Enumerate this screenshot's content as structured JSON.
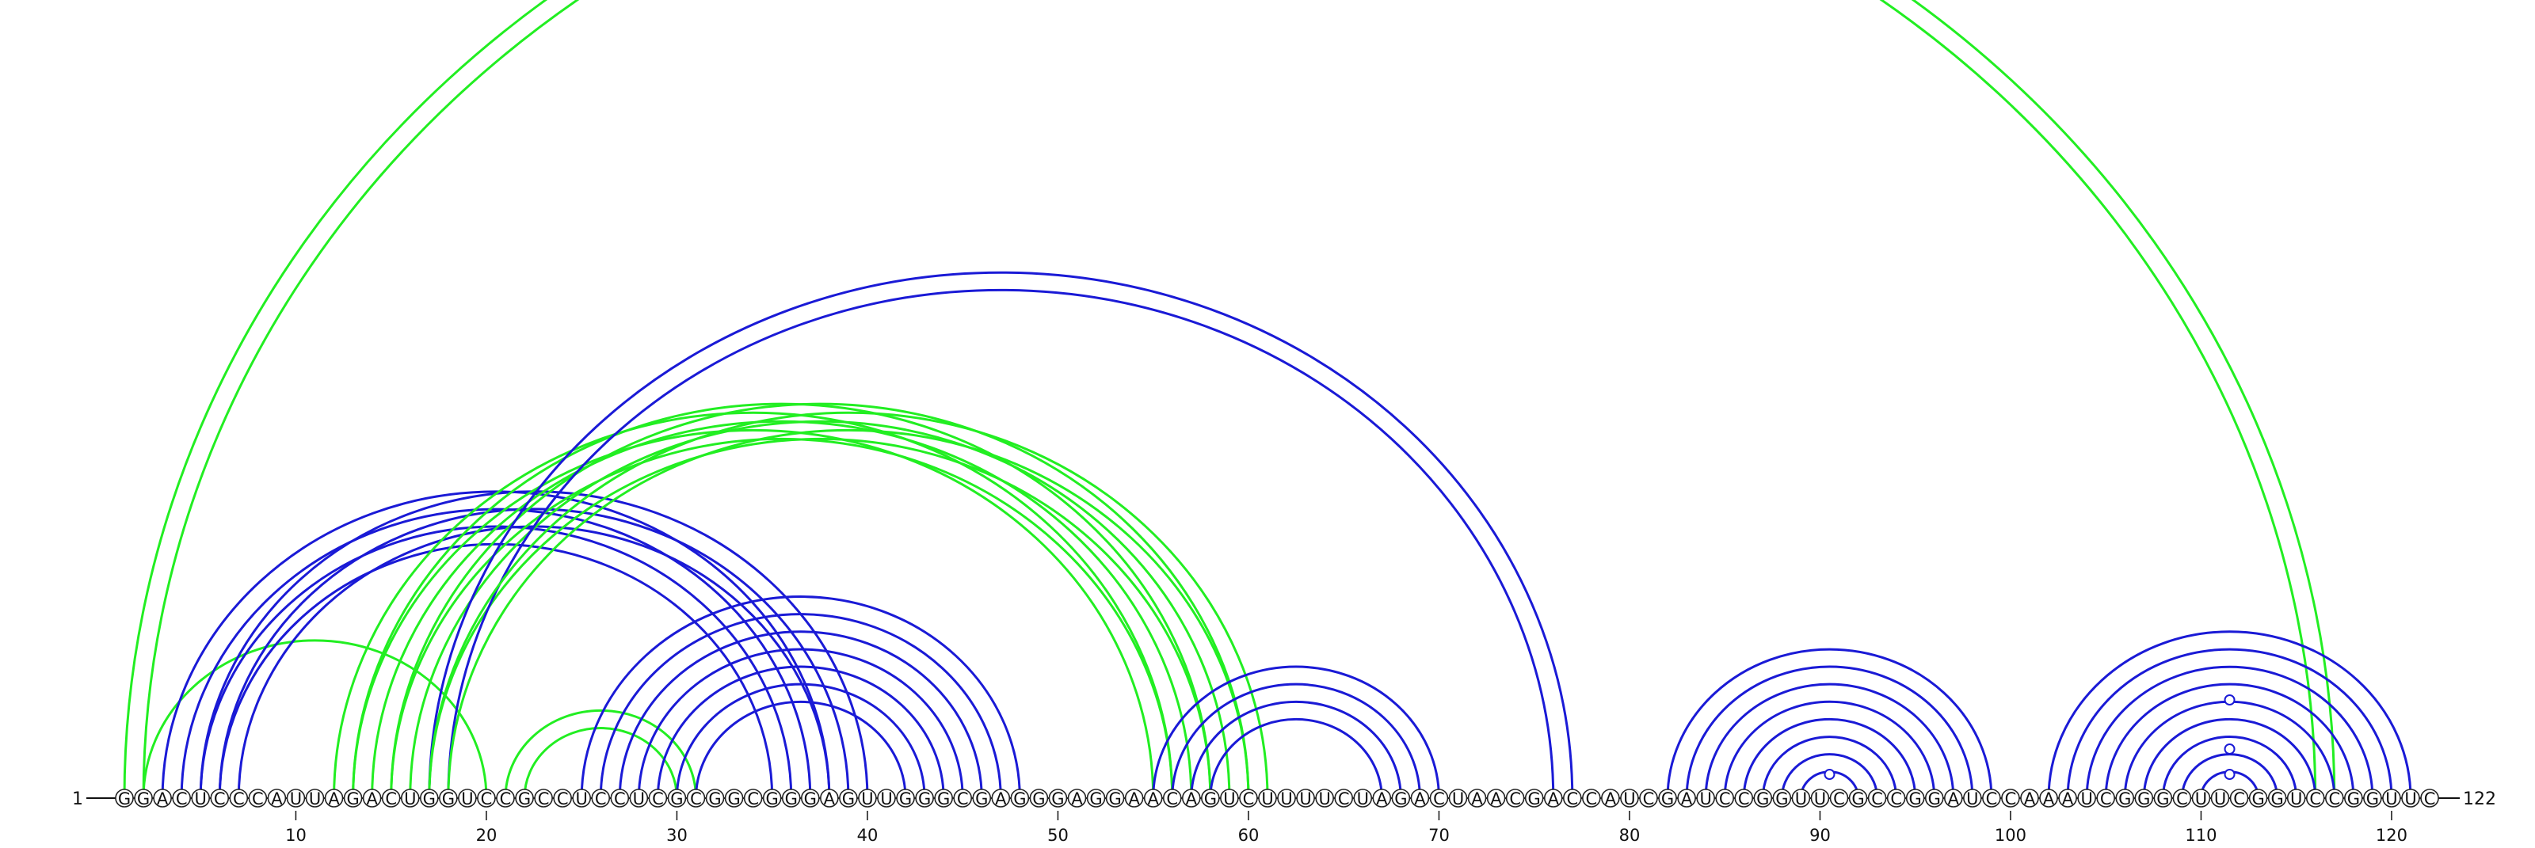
{
  "sequence": "GGACUCCCAUUAGACUGGUCCGCCUCCUCGCGGCGGGAGUUGGGCGAGGGAGGAACAGUCUUUUCUAGACUAACGACCAUCGAUCCGGUUCGCCGGAUCCAAAUCGGGCUUCGGUCCGGUUC",
  "length": 122,
  "start_label": "1",
  "end_label": "122",
  "tick_labels": [
    "10",
    "20",
    "30",
    "40",
    "50",
    "60",
    "70",
    "80",
    "90",
    "100",
    "110",
    "120"
  ],
  "colors": {
    "blue": "#1a1ad6",
    "green": "#22ee22",
    "dot": "#1a1ad6"
  },
  "helices": [
    {
      "color": "green",
      "pairs": [
        [
          1,
          117
        ],
        [
          2,
          116
        ]
      ]
    },
    {
      "color": "green",
      "pairs": [
        [
          2,
          20
        ]
      ]
    },
    {
      "color": "blue",
      "pairs": [
        [
          3,
          38
        ],
        [
          4,
          37
        ],
        [
          5,
          36
        ],
        [
          6,
          35
        ]
      ]
    },
    {
      "color": "blue",
      "pairs": [
        [
          5,
          40
        ],
        [
          6,
          39
        ],
        [
          7,
          38
        ]
      ]
    },
    {
      "color": "green",
      "pairs": [
        [
          12,
          56
        ],
        [
          13,
          55
        ]
      ]
    },
    {
      "color": "green",
      "pairs": [
        [
          13,
          58
        ],
        [
          14,
          57
        ],
        [
          15,
          56
        ]
      ]
    },
    {
      "color": "green",
      "pairs": [
        [
          15,
          60
        ],
        [
          16,
          59
        ],
        [
          17,
          58
        ]
      ]
    },
    {
      "color": "blue",
      "pairs": [
        [
          17,
          77
        ],
        [
          18,
          76
        ]
      ]
    },
    {
      "color": "green",
      "pairs": [
        [
          17,
          61
        ],
        [
          18,
          60
        ]
      ]
    },
    {
      "color": "green",
      "pairs": [
        [
          21,
          31
        ],
        [
          22,
          30
        ]
      ]
    },
    {
      "color": "blue",
      "pairs": [
        [
          25,
          48
        ],
        [
          26,
          47
        ],
        [
          27,
          46
        ],
        [
          28,
          45
        ],
        [
          29,
          44
        ],
        [
          30,
          43
        ],
        [
          31,
          42
        ]
      ]
    },
    {
      "color": "blue",
      "pairs": [
        [
          55,
          70
        ],
        [
          56,
          69
        ],
        [
          57,
          68
        ],
        [
          58,
          67
        ]
      ]
    },
    {
      "color": "blue",
      "pairs": [
        [
          82,
          99
        ],
        [
          83,
          98
        ],
        [
          84,
          97
        ],
        [
          85,
          96
        ],
        [
          86,
          95
        ],
        [
          87,
          94
        ],
        [
          88,
          93
        ],
        [
          89,
          92
        ]
      ]
    },
    {
      "color": "blue",
      "pairs": [
        [
          102,
          121
        ],
        [
          103,
          120
        ],
        [
          104,
          119
        ],
        [
          105,
          118
        ],
        [
          106,
          117
        ],
        [
          107,
          116
        ],
        [
          108,
          115
        ],
        [
          109,
          114
        ],
        [
          110,
          113
        ]
      ]
    }
  ],
  "nc_markers": [
    90,
    111,
    111.2,
    111.4
  ]
}
